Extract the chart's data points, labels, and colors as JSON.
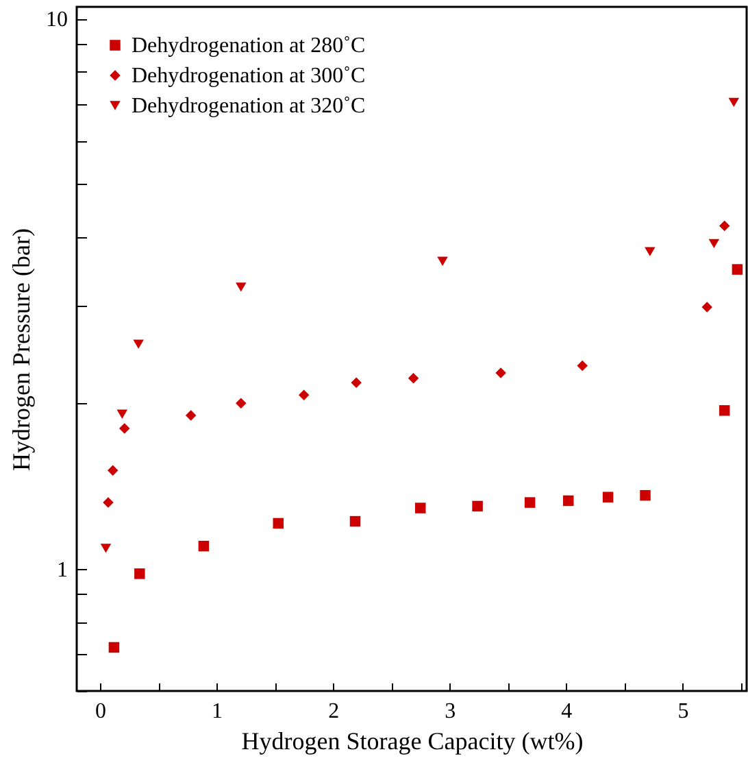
{
  "chart_data": {
    "type": "scatter",
    "xlabel": "Hydrogen Storage Capacity (wt%)",
    "ylabel": "Hydrogen Pressure (bar)",
    "log": "y",
    "grid": false,
    "legend": "top left",
    "xlim": [
      -0.2,
      5.55
    ],
    "xticks": [
      0,
      {
        "value": 0.5,
        "label": null
      },
      1,
      {
        "value": 1.5,
        "label": null
      },
      2,
      {
        "value": 2.5,
        "label": null
      },
      3,
      {
        "value": 3.5,
        "label": null
      },
      4,
      {
        "value": 4.5,
        "label": null
      },
      5,
      {
        "value": 5.5,
        "label": null
      }
    ],
    "ylim": [
      0.6,
      10.5
    ],
    "yticks": [
      {
        "value": 0.6,
        "label": null
      },
      {
        "value": 0.7,
        "label": null
      },
      {
        "value": 0.8,
        "label": null
      },
      {
        "value": 0.9,
        "label": null
      },
      1,
      {
        "value": 2,
        "label": null
      },
      {
        "value": 3,
        "label": null
      },
      {
        "value": 4,
        "label": null
      },
      {
        "value": 5,
        "label": null
      },
      {
        "value": 6,
        "label": null
      },
      {
        "value": 7,
        "label": null
      },
      {
        "value": 8,
        "label": null
      },
      {
        "value": 9,
        "label": null
      },
      10
    ],
    "series": [
      {
        "name": "Dehydrogenation at 280˚C",
        "color": "#cc0000",
        "marker": "square",
        "x": [
          0.12,
          0.34,
          0.89,
          1.53,
          2.19,
          2.75,
          3.24,
          3.69,
          4.02,
          4.36,
          4.68,
          5.36,
          5.47
        ],
        "values": [
          0.72,
          0.98,
          1.1,
          1.21,
          1.22,
          1.29,
          1.3,
          1.32,
          1.33,
          1.35,
          1.36,
          1.94,
          3.5
        ]
      },
      {
        "name": "Dehydrogenation at 300˚C",
        "color": "#cc0000",
        "marker": "diamond",
        "x": [
          0.07,
          0.11,
          0.21,
          0.78,
          1.21,
          1.75,
          2.2,
          2.69,
          3.44,
          4.14,
          5.21,
          5.36
        ],
        "values": [
          1.32,
          1.51,
          1.8,
          1.9,
          2.0,
          2.07,
          2.18,
          2.22,
          2.27,
          2.34,
          2.99,
          4.2
        ]
      },
      {
        "name": "Dehydrogenation at 320˚C",
        "color": "#cc0000",
        "marker": "triangle-down",
        "x": [
          0.05,
          0.19,
          0.33,
          1.21,
          2.94,
          4.72,
          5.27,
          5.44
        ],
        "values": [
          1.09,
          1.91,
          2.56,
          3.25,
          3.62,
          3.77,
          3.9,
          7.04
        ]
      }
    ]
  }
}
